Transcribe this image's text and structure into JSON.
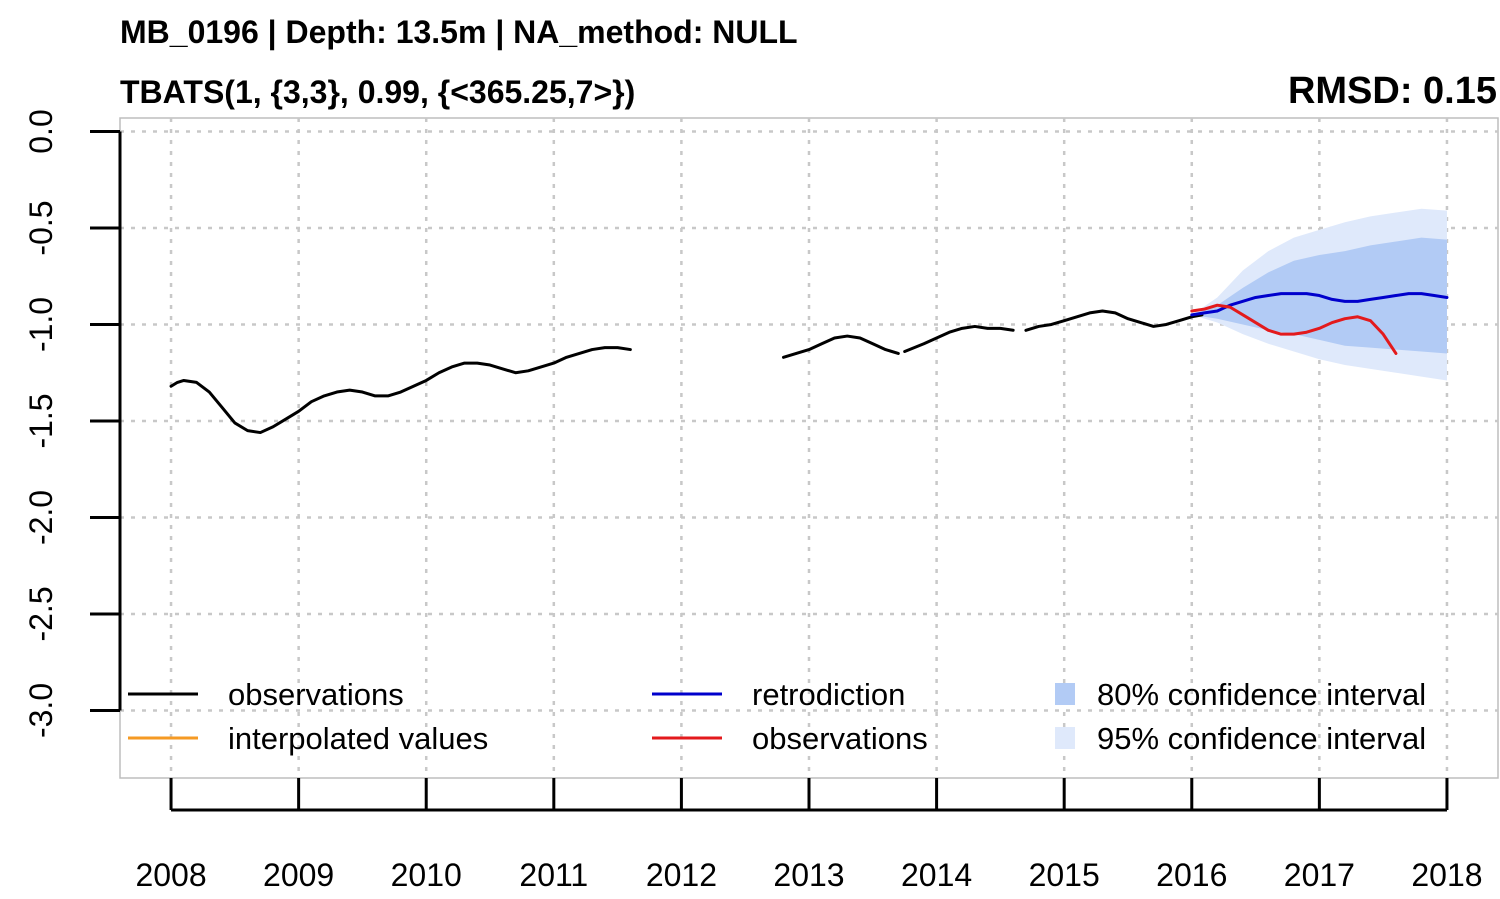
{
  "title": "MB_0196 | Depth: 13.5m | NA_method: NULL",
  "subtitle": "TBATS(1, {3,3}, 0.99, {<365.25,7>})",
  "rmsd_label": "RMSD: 0.15",
  "chart_data": {
    "type": "line",
    "xlim": [
      2007.6,
      2018.4
    ],
    "ylim": [
      -3.35,
      0.07
    ],
    "x_ticks": [
      2008,
      2009,
      2010,
      2011,
      2012,
      2013,
      2014,
      2015,
      2016,
      2017,
      2018
    ],
    "x_tick_labels": [
      "2008",
      "2009",
      "2010",
      "2011",
      "2012",
      "2013",
      "2014",
      "2015",
      "2016",
      "2017",
      "2018"
    ],
    "y_ticks": [
      0.0,
      -0.5,
      -1.0,
      -1.5,
      -2.0,
      -2.5,
      -3.0
    ],
    "y_tick_labels": [
      "0.0",
      "-0.5",
      "-1.0",
      "-1.5",
      "-2.0",
      "-2.5",
      "-3.0"
    ],
    "grid": true,
    "legend_position": "bottom",
    "series": [
      {
        "name": "observations",
        "color": "#000000",
        "segments": [
          [
            [
              2008.0,
              -1.32
            ],
            [
              2008.05,
              -1.3
            ],
            [
              2008.1,
              -1.29
            ],
            [
              2008.2,
              -1.3
            ],
            [
              2008.3,
              -1.35
            ],
            [
              2008.4,
              -1.43
            ],
            [
              2008.5,
              -1.51
            ],
            [
              2008.6,
              -1.55
            ],
            [
              2008.7,
              -1.56
            ],
            [
              2008.8,
              -1.53
            ],
            [
              2008.9,
              -1.49
            ],
            [
              2009.0,
              -1.45
            ],
            [
              2009.1,
              -1.4
            ],
            [
              2009.2,
              -1.37
            ],
            [
              2009.3,
              -1.35
            ],
            [
              2009.4,
              -1.34
            ],
            [
              2009.5,
              -1.35
            ],
            [
              2009.6,
              -1.37
            ],
            [
              2009.7,
              -1.37
            ],
            [
              2009.8,
              -1.35
            ],
            [
              2009.9,
              -1.32
            ],
            [
              2010.0,
              -1.29
            ],
            [
              2010.1,
              -1.25
            ],
            [
              2010.2,
              -1.22
            ],
            [
              2010.3,
              -1.2
            ],
            [
              2010.4,
              -1.2
            ],
            [
              2010.5,
              -1.21
            ],
            [
              2010.6,
              -1.23
            ],
            [
              2010.7,
              -1.25
            ],
            [
              2010.8,
              -1.24
            ],
            [
              2010.9,
              -1.22
            ],
            [
              2011.0,
              -1.2
            ],
            [
              2011.1,
              -1.17
            ],
            [
              2011.2,
              -1.15
            ],
            [
              2011.3,
              -1.13
            ],
            [
              2011.4,
              -1.12
            ],
            [
              2011.5,
              -1.12
            ],
            [
              2011.6,
              -1.13
            ]
          ],
          [
            [
              2012.8,
              -1.17
            ],
            [
              2012.9,
              -1.15
            ],
            [
              2013.0,
              -1.13
            ],
            [
              2013.1,
              -1.1
            ],
            [
              2013.2,
              -1.07
            ],
            [
              2013.3,
              -1.06
            ],
            [
              2013.4,
              -1.07
            ],
            [
              2013.5,
              -1.1
            ],
            [
              2013.6,
              -1.13
            ],
            [
              2013.7,
              -1.15
            ]
          ],
          [
            [
              2013.75,
              -1.14
            ],
            [
              2013.9,
              -1.1
            ],
            [
              2014.0,
              -1.07
            ],
            [
              2014.1,
              -1.04
            ],
            [
              2014.2,
              -1.02
            ],
            [
              2014.3,
              -1.01
            ],
            [
              2014.4,
              -1.02
            ],
            [
              2014.5,
              -1.02
            ],
            [
              2014.6,
              -1.03
            ]
          ],
          [
            [
              2014.7,
              -1.03
            ],
            [
              2014.8,
              -1.01
            ],
            [
              2014.9,
              -1.0
            ],
            [
              2015.0,
              -0.98
            ],
            [
              2015.1,
              -0.96
            ],
            [
              2015.2,
              -0.94
            ],
            [
              2015.3,
              -0.93
            ],
            [
              2015.4,
              -0.94
            ],
            [
              2015.5,
              -0.97
            ],
            [
              2015.6,
              -0.99
            ],
            [
              2015.7,
              -1.01
            ],
            [
              2015.8,
              -1.0
            ],
            [
              2015.9,
              -0.98
            ],
            [
              2016.0,
              -0.96
            ],
            [
              2016.08,
              -0.95
            ]
          ]
        ]
      },
      {
        "name": "interpolated values",
        "color": "#f59a23",
        "segments": []
      },
      {
        "name": "retrodiction",
        "color": "#0000cc",
        "segments": [
          [
            [
              2016.0,
              -0.95
            ],
            [
              2016.1,
              -0.94
            ],
            [
              2016.2,
              -0.93
            ],
            [
              2016.3,
              -0.9
            ],
            [
              2016.4,
              -0.88
            ],
            [
              2016.5,
              -0.86
            ],
            [
              2016.6,
              -0.85
            ],
            [
              2016.7,
              -0.84
            ],
            [
              2016.8,
              -0.84
            ],
            [
              2016.9,
              -0.84
            ],
            [
              2017.0,
              -0.85
            ],
            [
              2017.1,
              -0.87
            ],
            [
              2017.2,
              -0.88
            ],
            [
              2017.3,
              -0.88
            ],
            [
              2017.4,
              -0.87
            ],
            [
              2017.5,
              -0.86
            ],
            [
              2017.6,
              -0.85
            ],
            [
              2017.7,
              -0.84
            ],
            [
              2017.8,
              -0.84
            ],
            [
              2017.9,
              -0.85
            ],
            [
              2018.0,
              -0.86
            ]
          ]
        ]
      },
      {
        "name": "observations",
        "color": "#e31a1c",
        "segments": [
          [
            [
              2016.0,
              -0.93
            ],
            [
              2016.1,
              -0.92
            ],
            [
              2016.2,
              -0.9
            ],
            [
              2016.3,
              -0.91
            ],
            [
              2016.4,
              -0.95
            ],
            [
              2016.5,
              -0.99
            ],
            [
              2016.6,
              -1.03
            ],
            [
              2016.7,
              -1.05
            ],
            [
              2016.8,
              -1.05
            ],
            [
              2016.9,
              -1.04
            ],
            [
              2017.0,
              -1.02
            ],
            [
              2017.1,
              -0.99
            ],
            [
              2017.2,
              -0.97
            ],
            [
              2017.3,
              -0.96
            ],
            [
              2017.4,
              -0.98
            ],
            [
              2017.5,
              -1.05
            ],
            [
              2017.55,
              -1.1
            ],
            [
              2017.6,
              -1.15
            ]
          ]
        ]
      }
    ],
    "bands": [
      {
        "name": "95% confidence interval",
        "color": "#dfe9fb",
        "x": [
          2016.0,
          2016.2,
          2016.4,
          2016.6,
          2016.8,
          2017.0,
          2017.2,
          2017.4,
          2017.6,
          2017.8,
          2018.0
        ],
        "upper": [
          -0.95,
          -0.86,
          -0.72,
          -0.62,
          -0.55,
          -0.51,
          -0.47,
          -0.44,
          -0.42,
          -0.4,
          -0.41
        ],
        "lower": [
          -0.95,
          -0.99,
          -1.05,
          -1.1,
          -1.14,
          -1.18,
          -1.21,
          -1.23,
          -1.25,
          -1.27,
          -1.29
        ]
      },
      {
        "name": "80% confidence interval",
        "color": "#b2cbf5",
        "x": [
          2016.0,
          2016.2,
          2016.4,
          2016.6,
          2016.8,
          2017.0,
          2017.2,
          2017.4,
          2017.6,
          2017.8,
          2018.0
        ],
        "upper": [
          -0.95,
          -0.9,
          -0.81,
          -0.73,
          -0.67,
          -0.64,
          -0.62,
          -0.59,
          -0.57,
          -0.55,
          -0.56
        ],
        "lower": [
          -0.95,
          -0.97,
          -1.0,
          -1.03,
          -1.05,
          -1.08,
          -1.11,
          -1.12,
          -1.13,
          -1.14,
          -1.15
        ]
      }
    ],
    "legend": [
      {
        "label": "observations",
        "kind": "line",
        "color": "#000000"
      },
      {
        "label": "interpolated values",
        "kind": "line",
        "color": "#f59a23"
      },
      {
        "label": "retrodiction",
        "kind": "line",
        "color": "#0000cc"
      },
      {
        "label": "observations",
        "kind": "line",
        "color": "#e31a1c"
      },
      {
        "label": "80% confidence interval",
        "kind": "box",
        "color": "#b2cbf5"
      },
      {
        "label": "95% confidence interval",
        "kind": "box",
        "color": "#dfe9fb"
      }
    ]
  }
}
